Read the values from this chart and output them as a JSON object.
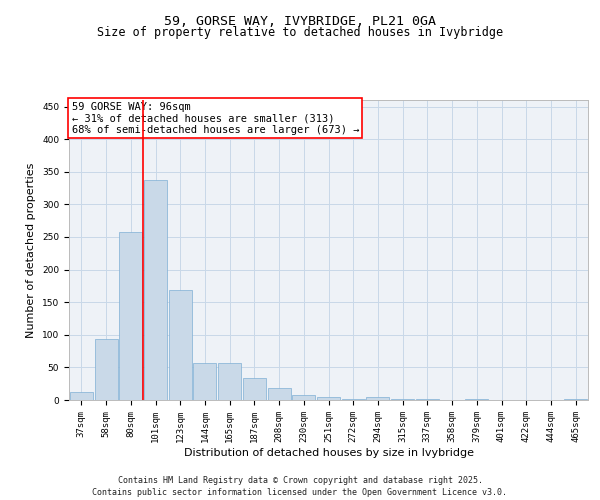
{
  "title1": "59, GORSE WAY, IVYBRIDGE, PL21 0GA",
  "title2": "Size of property relative to detached houses in Ivybridge",
  "xlabel": "Distribution of detached houses by size in Ivybridge",
  "ylabel": "Number of detached properties",
  "categories": [
    "37sqm",
    "58sqm",
    "80sqm",
    "101sqm",
    "123sqm",
    "144sqm",
    "165sqm",
    "187sqm",
    "208sqm",
    "230sqm",
    "251sqm",
    "272sqm",
    "294sqm",
    "315sqm",
    "337sqm",
    "358sqm",
    "379sqm",
    "401sqm",
    "422sqm",
    "444sqm",
    "465sqm"
  ],
  "values": [
    12,
    93,
    258,
    337,
    168,
    57,
    57,
    33,
    18,
    8,
    5,
    2,
    4,
    2,
    1,
    0,
    1,
    0,
    0,
    0,
    1
  ],
  "bar_color": "#c9d9e8",
  "bar_edge_color": "#7fafd4",
  "grid_color": "#c8d8e8",
  "vline_x": 2.5,
  "vline_color": "red",
  "annotation_text": "59 GORSE WAY: 96sqm\n← 31% of detached houses are smaller (313)\n68% of semi-detached houses are larger (673) →",
  "annotation_box_color": "white",
  "annotation_box_edge_color": "red",
  "footnote1": "Contains HM Land Registry data © Crown copyright and database right 2025.",
  "footnote2": "Contains public sector information licensed under the Open Government Licence v3.0.",
  "ylim": [
    0,
    460
  ],
  "yticks": [
    0,
    50,
    100,
    150,
    200,
    250,
    300,
    350,
    400,
    450
  ],
  "bg_color": "#eef2f7",
  "fig_bg_color": "#ffffff",
  "title_fontsize": 9.5,
  "subtitle_fontsize": 8.5,
  "tick_fontsize": 6.5,
  "label_fontsize": 8,
  "annotation_fontsize": 7.5,
  "footnote_fontsize": 6.0
}
